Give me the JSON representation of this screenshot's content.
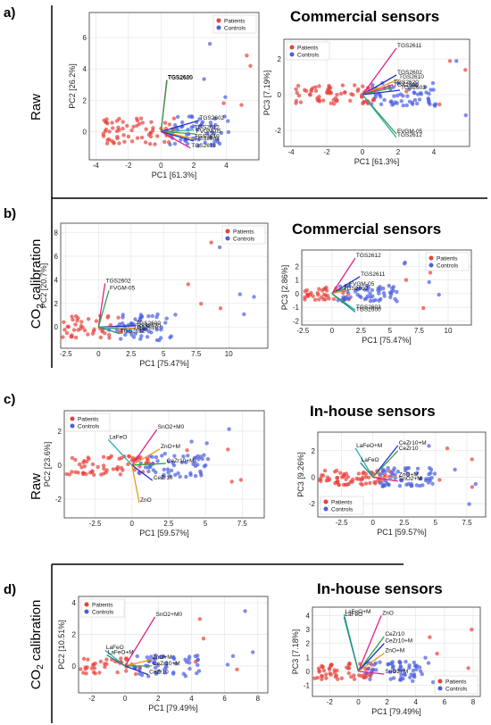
{
  "panels": [
    {
      "letter": "a)",
      "title": "Commercial sensors",
      "row_label": "Raw"
    },
    {
      "letter": "b)",
      "title": "Commercial sensors",
      "row_label": "CO2 calibration"
    },
    {
      "letter": "c)",
      "title": "In-house sensors",
      "row_label": "Raw"
    },
    {
      "letter": "d)",
      "title": "In-house sensors",
      "row_label": "CO2 calibration"
    }
  ],
  "legend": {
    "patients": "Patients",
    "controls": "Controls"
  },
  "colors": {
    "patients": "#e8403a",
    "controls": "#4a5ee0",
    "grid": "#e6e6e6",
    "load_magenta": "#e0218a",
    "load_green": "#3aa04a",
    "load_blue": "#2233cc",
    "load_orange": "#e89a1a",
    "load_cyan": "#2aa8b0",
    "load_teal": "#1f8a7a"
  },
  "chart_data": [
    {
      "id": "a-left",
      "type": "scatter",
      "xlabel": "PC1 [61.3%]",
      "ylabel": "PC2 [26.2%]",
      "xlim": [
        -4.4,
        6
      ],
      "ylim": [
        -1.8,
        7.6
      ],
      "xticks": [
        -4,
        -2,
        0,
        2,
        4
      ],
      "yticks": [
        0,
        2,
        4,
        6
      ],
      "legend_position": "top-right",
      "series": [
        {
          "name": "Patients",
          "group": "patients"
        },
        {
          "name": "Controls",
          "group": "controls"
        }
      ],
      "loadings": [
        {
          "label": "TGS2620",
          "x": 0.35,
          "y": 3.3,
          "color": "load_magenta"
        },
        {
          "label": "TGS2600",
          "x": 0.37,
          "y": 3.28,
          "color": "load_green"
        },
        {
          "label": "TGS2602",
          "x": 2.3,
          "y": 0.7,
          "color": "load_blue"
        },
        {
          "label": "TGS2612",
          "x": 2.0,
          "y": 0.1,
          "color": "load_cyan"
        },
        {
          "label": "FVGM-05",
          "x": 2.1,
          "y": -0.15,
          "color": "load_green"
        },
        {
          "label": "TGS2610",
          "x": 2.0,
          "y": -0.45,
          "color": "load_orange"
        },
        {
          "label": "TGS2603",
          "x": 2.0,
          "y": -0.6,
          "color": "load_blue"
        },
        {
          "label": "TGS2611",
          "x": 1.8,
          "y": -1.05,
          "color": "load_magenta"
        }
      ]
    },
    {
      "id": "a-right",
      "type": "scatter",
      "xlabel": "PC1 [61.3%]",
      "ylabel": "PC3 [7.19%]",
      "xlim": [
        -4.4,
        6
      ],
      "ylim": [
        -2.9,
        3.1
      ],
      "xticks": [
        -4,
        -2,
        0,
        2,
        4
      ],
      "yticks": [
        -2,
        0,
        2
      ],
      "legend_position": "top-left",
      "series": [
        {
          "name": "Patients",
          "group": "patients"
        },
        {
          "name": "Controls",
          "group": "controls"
        }
      ],
      "loadings": [
        {
          "label": "TGS2611",
          "x": 1.9,
          "y": 2.6,
          "color": "load_magenta"
        },
        {
          "label": "TGS2602",
          "x": 1.9,
          "y": 1.1,
          "color": "load_blue"
        },
        {
          "label": "TGS2610",
          "x": 2.0,
          "y": 0.85,
          "color": "load_orange"
        },
        {
          "label": "TGS2620",
          "x": 1.7,
          "y": 0.55,
          "color": "load_magenta"
        },
        {
          "label": "TGS2600",
          "x": 1.7,
          "y": 0.4,
          "color": "load_green"
        },
        {
          "label": "TGS2603",
          "x": 2.1,
          "y": 0.25,
          "color": "load_blue"
        },
        {
          "label": "FVGM-05",
          "x": 1.9,
          "y": -2.2,
          "color": "load_green"
        },
        {
          "label": "TGS2612",
          "x": 1.9,
          "y": -2.4,
          "color": "load_cyan"
        }
      ]
    },
    {
      "id": "b-left",
      "type": "scatter",
      "xlabel": "PC1 [75.47%]",
      "ylabel": "PC2 [20.7%]",
      "xlim": [
        -2.9,
        13
      ],
      "ylim": [
        -1.8,
        8.8
      ],
      "xticks": [
        -2.5,
        0.0,
        2.5,
        5.0,
        7.5,
        10.0
      ],
      "yticks": [
        0,
        2,
        4,
        6,
        8
      ],
      "legend_position": "top-right",
      "series": [
        {
          "name": "Patients",
          "group": "patients"
        },
        {
          "name": "Controls",
          "group": "controls"
        }
      ],
      "loadings": [
        {
          "label": "TGS2602",
          "x": 0.5,
          "y": 3.7,
          "color": "load_magenta"
        },
        {
          "label": "FVGM-05",
          "x": 0.8,
          "y": 3.1,
          "color": "load_green"
        },
        {
          "label": "TGS2600",
          "x": 2.8,
          "y": 0.1,
          "color": "load_blue"
        },
        {
          "label": "TGS2620",
          "x": 2.8,
          "y": -0.1,
          "color": "load_orange"
        },
        {
          "label": "TGS2610",
          "x": 2.6,
          "y": -0.3,
          "color": "load_cyan"
        },
        {
          "label": "TGS2612",
          "x": 1.6,
          "y": -0.55,
          "color": "load_teal"
        }
      ]
    },
    {
      "id": "b-right",
      "type": "scatter",
      "xlabel": "PC1 [75.47%]",
      "ylabel": "PC3 [2.86%]",
      "xlim": [
        -2.6,
        12
      ],
      "ylim": [
        -2.3,
        3.2
      ],
      "xticks": [
        -2.5,
        0.0,
        2.5,
        5.0,
        7.5,
        10.0
      ],
      "yticks": [
        -2,
        -1,
        0,
        1,
        2
      ],
      "legend_position": "top-right",
      "series": [
        {
          "name": "Patients",
          "group": "patients"
        },
        {
          "name": "Controls",
          "group": "controls"
        }
      ],
      "loadings": [
        {
          "label": "TGS2612",
          "x": 2.0,
          "y": 2.6,
          "color": "load_magenta"
        },
        {
          "label": "TGS2611",
          "x": 2.4,
          "y": 1.25,
          "color": "load_blue"
        },
        {
          "label": "FVGM-05",
          "x": 1.4,
          "y": 0.5,
          "color": "load_green"
        },
        {
          "label": "TGS2602",
          "x": 0.9,
          "y": 0.2,
          "color": "load_orange"
        },
        {
          "label": "TGS2603",
          "x": 2.0,
          "y": -1.2,
          "color": "load_cyan"
        },
        {
          "label": "TGS2600",
          "x": 2.0,
          "y": -1.35,
          "color": "load_teal"
        }
      ]
    },
    {
      "id": "c-left",
      "type": "scatter",
      "xlabel": "PC1 [59.57%]",
      "ylabel": "PC2 [23.6%]",
      "xlim": [
        -4.6,
        9
      ],
      "ylim": [
        -3.1,
        3.2
      ],
      "xticks": [
        -2.5,
        0.0,
        2.5,
        5.0,
        7.5
      ],
      "yticks": [
        -2,
        0,
        2
      ],
      "legend_position": "top-left",
      "series": [
        {
          "name": "Patients",
          "group": "patients"
        },
        {
          "name": "Controls",
          "group": "controls"
        }
      ],
      "loadings": [
        {
          "label": "SnO2+M0",
          "x": 1.7,
          "y": 2.1,
          "color": "load_magenta"
        },
        {
          "label": "LaFeO",
          "x": -1.6,
          "y": 1.5,
          "color": "load_cyan"
        },
        {
          "label": "ZnO+M",
          "x": 1.9,
          "y": 0.95,
          "color": "load_orange"
        },
        {
          "label": "CeZr10+M",
          "x": 2.3,
          "y": 0.1,
          "color": "load_green"
        },
        {
          "label": "CeZr10",
          "x": 1.4,
          "y": -0.9,
          "color": "load_blue"
        },
        {
          "label": "ZnO",
          "x": 0.5,
          "y": -2.2,
          "color": "load_orange"
        }
      ]
    },
    {
      "id": "c-right",
      "type": "scatter",
      "xlabel": "PC1 [59.57%]",
      "ylabel": "PC3 [9.26%]",
      "xlim": [
        -4.4,
        9
      ],
      "ylim": [
        -3.0,
        3.4
      ],
      "xticks": [
        -2.5,
        0.0,
        2.5,
        5.0,
        7.5
      ],
      "yticks": [
        -2,
        0,
        2
      ],
      "legend_position": "bottom-left",
      "series": [
        {
          "name": "Patients",
          "group": "patients"
        },
        {
          "name": "Controls",
          "group": "controls"
        }
      ],
      "loadings": [
        {
          "label": "CeZr10+M",
          "x": 2.0,
          "y": 2.4,
          "color": "load_blue"
        },
        {
          "label": "CeZr10",
          "x": 2.0,
          "y": 2.0,
          "color": "load_green"
        },
        {
          "label": "LaFeO+M",
          "x": -1.4,
          "y": 2.2,
          "color": "load_cyan"
        },
        {
          "label": "LaFeO",
          "x": -1.0,
          "y": 1.1,
          "color": "load_teal"
        },
        {
          "label": "ZnO+M",
          "x": 2.0,
          "y": 0.0,
          "color": "load_orange"
        },
        {
          "label": "SnO2+M",
          "x": 2.0,
          "y": -0.3,
          "color": "load_magenta"
        }
      ]
    },
    {
      "id": "d-left",
      "type": "scatter",
      "xlabel": "PC1 [79.49%]",
      "ylabel": "PC2 [10.51%]",
      "xlim": [
        -2.8,
        8.6
      ],
      "ylim": [
        -1.7,
        4.4
      ],
      "xticks": [
        -2,
        0,
        2,
        4,
        6,
        8
      ],
      "yticks": [
        0,
        2,
        4
      ],
      "legend_position": "top-left",
      "series": [
        {
          "name": "Patients",
          "group": "patients"
        },
        {
          "name": "Controls",
          "group": "controls"
        }
      ],
      "loadings": [
        {
          "label": "SnO2+M0",
          "x": 1.8,
          "y": 3.1,
          "color": "load_magenta"
        },
        {
          "label": "LaFeO",
          "x": -1.2,
          "y": 1.0,
          "color": "load_cyan"
        },
        {
          "label": "LaFeO+M",
          "x": -1.1,
          "y": 0.7,
          "color": "load_teal"
        },
        {
          "label": "ZnO+M",
          "x": 1.6,
          "y": 0.4,
          "color": "load_orange"
        },
        {
          "label": "CeZr10+M",
          "x": 1.6,
          "y": 0.0,
          "color": "load_green"
        },
        {
          "label": "CeZr10",
          "x": 1.4,
          "y": -0.55,
          "color": "load_blue"
        }
      ]
    },
    {
      "id": "d-right",
      "type": "scatter",
      "xlabel": "PC1 [79.49%]",
      "ylabel": "PC3 [7.18%]",
      "xlim": [
        -3.2,
        8.5
      ],
      "ylim": [
        -1.8,
        4.6
      ],
      "xticks": [
        -2,
        0,
        2,
        4,
        6,
        8
      ],
      "yticks": [
        -1,
        0,
        1,
        2,
        3,
        4
      ],
      "legend_position": "bottom-right",
      "series": [
        {
          "name": "Patients",
          "group": "patients"
        },
        {
          "name": "Controls",
          "group": "controls"
        }
      ],
      "loadings": [
        {
          "label": "LaFeO+M",
          "x": -1.0,
          "y": 4.1,
          "color": "load_cyan"
        },
        {
          "label": "LaFeO",
          "x": -1.0,
          "y": 3.9,
          "color": "load_teal"
        },
        {
          "label": "ZnO",
          "x": 1.6,
          "y": 4.0,
          "color": "load_magenta"
        },
        {
          "label": "CeZr10",
          "x": 1.8,
          "y": 2.5,
          "color": "load_green"
        },
        {
          "label": "CeZr10+M",
          "x": 1.8,
          "y": 2.0,
          "color": "load_blue"
        },
        {
          "label": "ZnO+M",
          "x": 1.8,
          "y": 1.3,
          "color": "load_orange"
        },
        {
          "label": "SnO2+M",
          "x": 1.8,
          "y": -0.2,
          "color": "load_magenta"
        }
      ]
    }
  ]
}
